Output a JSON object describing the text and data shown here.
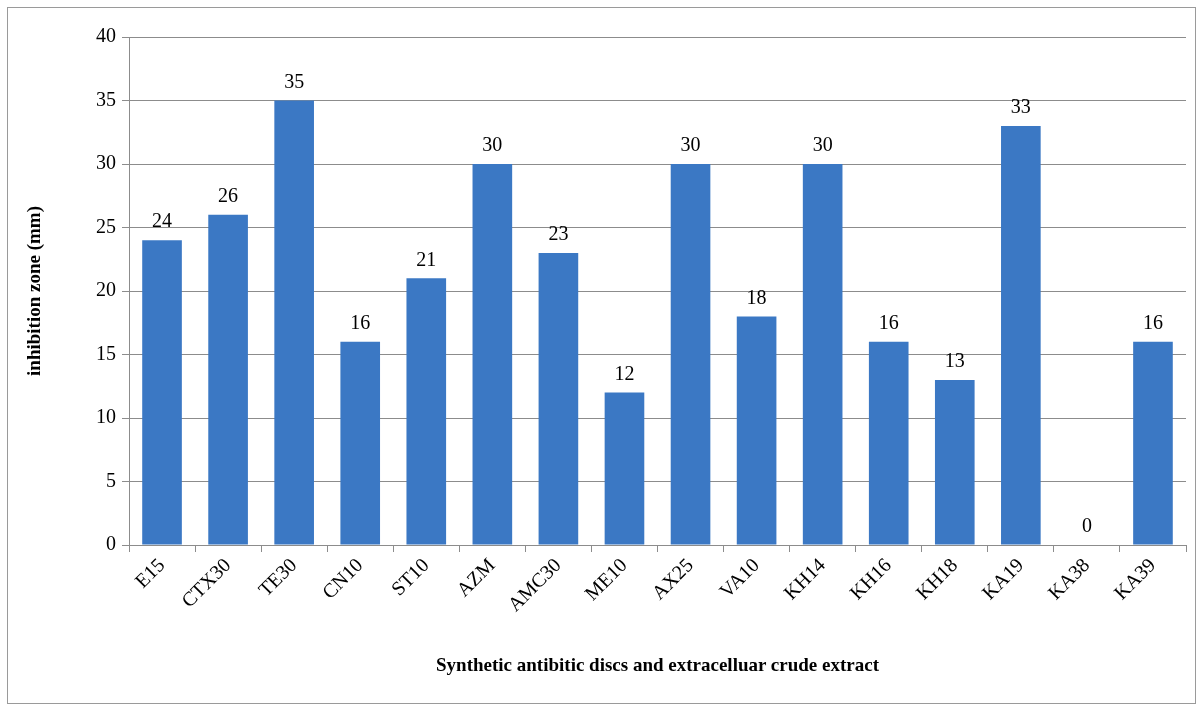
{
  "chart_data": {
    "type": "bar",
    "xlabel": "Synthetic antibitic discs and extracelluar crude extract",
    "ylabel": "inhibition zone (mm)",
    "categories": [
      "E15",
      "CTX30",
      "TE30",
      "CN10",
      "ST10",
      "AZM",
      "AMC30",
      "ME10",
      "AX25",
      "VA10",
      "KH14",
      "KH16",
      "KH18",
      "KA19",
      "KA38",
      "KA39"
    ],
    "values": [
      24,
      26,
      35,
      16,
      21,
      30,
      23,
      12,
      30,
      18,
      30,
      16,
      13,
      33,
      0,
      16
    ],
    "color": "#3b78c4",
    "ylim": [
      0,
      40
    ],
    "yticks": [
      0,
      5,
      10,
      15,
      20,
      25,
      30,
      35,
      40
    ],
    "grid": "y",
    "data_labels": true
  }
}
